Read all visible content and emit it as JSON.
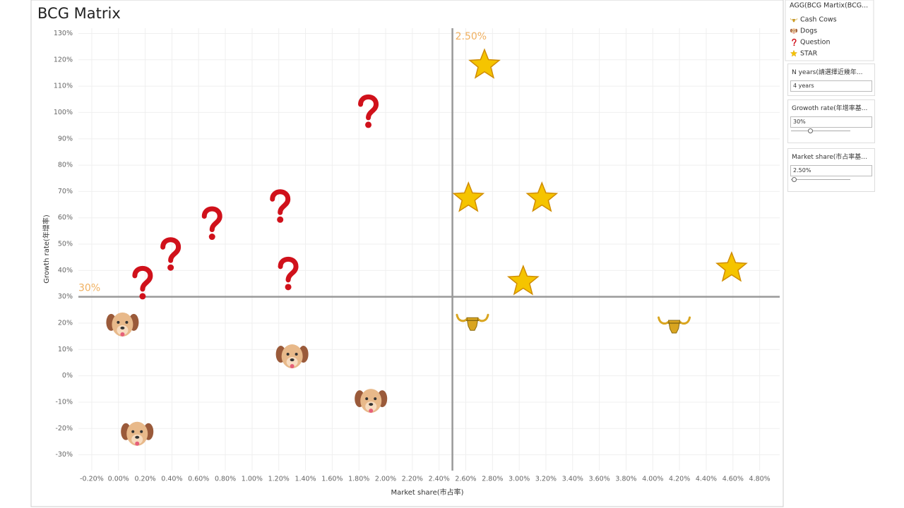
{
  "chart_data": {
    "type": "scatter",
    "title": "BCG Matrix",
    "x_label": "Market share(市占率)",
    "y_label": "Growth rate(年增率)",
    "xlim": [
      -0.3,
      4.95
    ],
    "ylim": [
      -36,
      132
    ],
    "grid": true,
    "xticks": [
      {
        "value": -0.2,
        "label": "-0.20%"
      },
      {
        "value": 0,
        "label": "0.00%"
      },
      {
        "value": 0.2,
        "label": "0.20%"
      },
      {
        "value": 0.4,
        "label": "0.40%"
      },
      {
        "value": 0.6,
        "label": "0.60%"
      },
      {
        "value": 0.8,
        "label": "0.80%"
      },
      {
        "value": 1.0,
        "label": "1.00%"
      },
      {
        "value": 1.2,
        "label": "1.20%"
      },
      {
        "value": 1.4,
        "label": "1.40%"
      },
      {
        "value": 1.6,
        "label": "1.60%"
      },
      {
        "value": 1.8,
        "label": "1.80%"
      },
      {
        "value": 2.0,
        "label": "2.00%"
      },
      {
        "value": 2.2,
        "label": "2.20%"
      },
      {
        "value": 2.4,
        "label": "2.40%"
      },
      {
        "value": 2.6,
        "label": "2.60%"
      },
      {
        "value": 2.8,
        "label": "2.80%"
      },
      {
        "value": 3.0,
        "label": "3.00%"
      },
      {
        "value": 3.2,
        "label": "3.20%"
      },
      {
        "value": 3.4,
        "label": "3.40%"
      },
      {
        "value": 3.6,
        "label": "3.60%"
      },
      {
        "value": 3.8,
        "label": "3.80%"
      },
      {
        "value": 4.0,
        "label": "4.00%"
      },
      {
        "value": 4.2,
        "label": "4.20%"
      },
      {
        "value": 4.4,
        "label": "4.40%"
      },
      {
        "value": 4.6,
        "label": "4.60%"
      },
      {
        "value": 4.8,
        "label": "4.80%"
      }
    ],
    "yticks": [
      {
        "value": -30,
        "label": "-30%"
      },
      {
        "value": -20,
        "label": "-20%"
      },
      {
        "value": -10,
        "label": "-10%"
      },
      {
        "value": 0,
        "label": "0%"
      },
      {
        "value": 10,
        "label": "10%"
      },
      {
        "value": 20,
        "label": "20%"
      },
      {
        "value": 30,
        "label": "30%"
      },
      {
        "value": 40,
        "label": "40%"
      },
      {
        "value": 50,
        "label": "50%"
      },
      {
        "value": 60,
        "label": "60%"
      },
      {
        "value": 70,
        "label": "70%"
      },
      {
        "value": 80,
        "label": "80%"
      },
      {
        "value": 90,
        "label": "90%"
      },
      {
        "value": 100,
        "label": "100%"
      },
      {
        "value": 110,
        "label": "110%"
      },
      {
        "value": 120,
        "label": "120%"
      },
      {
        "value": 130,
        "label": "130%"
      }
    ],
    "reference_lines": [
      {
        "axis": "x",
        "value": 2.5,
        "label": "2.50%"
      },
      {
        "axis": "y",
        "value": 30,
        "label": "30%"
      }
    ],
    "legend_title": "AGG(BCG Martix(BCG...",
    "series": [
      {
        "name": "Cash Cows",
        "marker": "cow",
        "color": "#d9a520",
        "x": [
          2.65,
          4.16
        ],
        "y": [
          21,
          20
        ]
      },
      {
        "name": "Dogs",
        "marker": "dog",
        "color": "#e8b98a",
        "x": [
          0.03,
          1.3,
          1.89,
          0.14
        ],
        "y": [
          19.5,
          7.4,
          -9.5,
          -22
        ]
      },
      {
        "name": "Question",
        "marker": "question",
        "color": "#d0111b",
        "x": [
          1.86,
          1.2,
          0.69,
          0.38,
          0.17,
          1.26
        ],
        "y": [
          100.4,
          64.4,
          57.9,
          46.2,
          35.3,
          38.8
        ]
      },
      {
        "name": "STAR",
        "marker": "star",
        "color": "#f5c400",
        "x": [
          2.74,
          2.62,
          3.17,
          3.03,
          4.59
        ],
        "y": [
          118,
          67.4,
          67.4,
          35.8,
          40.9
        ]
      }
    ]
  },
  "controls": [
    {
      "title": "N years(請選擇近幾年...",
      "value": "4 years"
    },
    {
      "title": "Growoth rate(年增率基...",
      "value": "30%"
    },
    {
      "title": "Market share(市占率基...",
      "value": "2.50%"
    }
  ]
}
